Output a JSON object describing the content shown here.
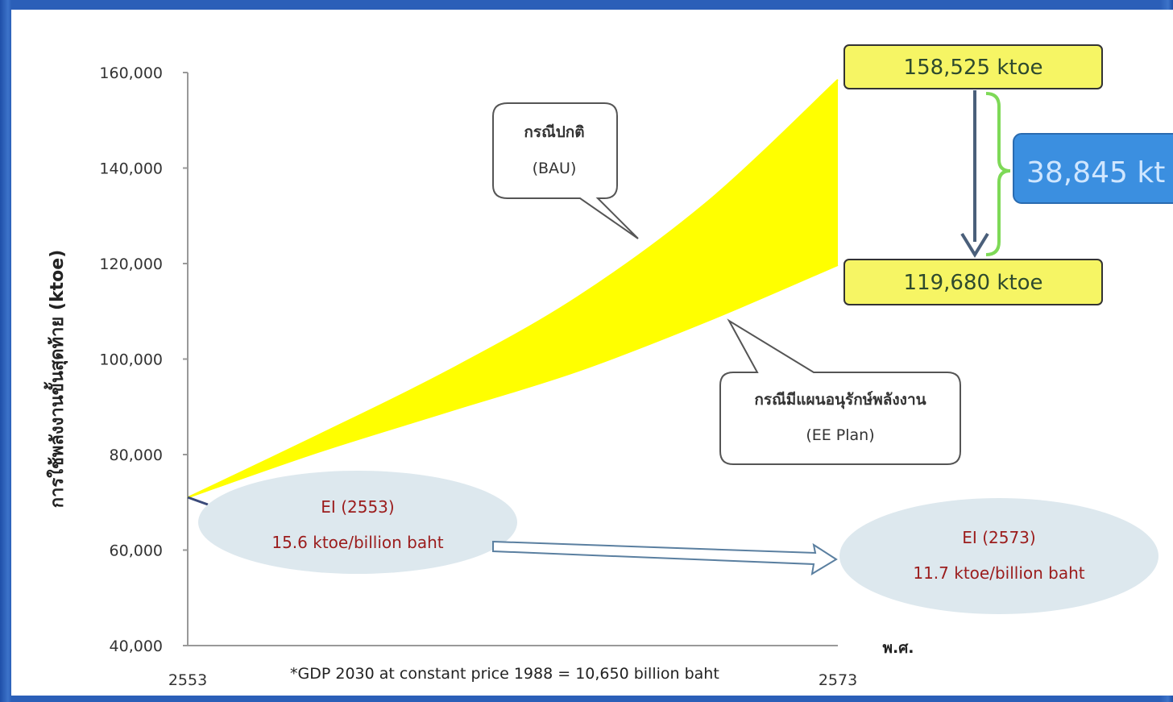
{
  "chart_data": {
    "type": "area",
    "ylabel": "การใช้พลังงานขั้นสุดท้าย (ktoe)",
    "xlabel_unit": "พ.ศ.",
    "x_ticks": [
      "2553",
      "2573"
    ],
    "y_ticks": [
      "160,000",
      "140,000",
      "120,000",
      "100,000",
      "80,000",
      "60,000",
      "40,000"
    ],
    "y_tick_values": [
      160000,
      140000,
      120000,
      100000,
      80000,
      60000,
      40000
    ],
    "ylim": [
      40000,
      160000
    ],
    "xlim": [
      2553,
      2573
    ],
    "x": [
      2553,
      2557,
      2561,
      2565,
      2569,
      2573
    ],
    "series": [
      {
        "name": "กรณีปกติ (BAU)",
        "values": [
          71000,
          84000,
          97500,
          113000,
          133000,
          158525
        ]
      },
      {
        "name": "กรณีมีแผนอนุรักษ์พลังงาน (EE Plan)",
        "values": [
          71000,
          80500,
          89000,
          97500,
          108000,
          119680
        ]
      }
    ],
    "fill_color": "#ffff00",
    "annotations": {
      "bau_callout": {
        "line1": "กรณีปกติ",
        "line2": "(BAU)"
      },
      "ee_callout": {
        "line1": "กรณีมีแผนอนุรักษ์พลังงาน",
        "line2": "(EE Plan)"
      },
      "bau_end_value": "158,525 ktoe",
      "ee_end_value": "119,680 ktoe",
      "savings": "38,845 kt",
      "ei_start": {
        "line1": "EI (2553)",
        "line2": "15.6 ktoe/billion baht"
      },
      "ei_end": {
        "line1": "EI (2573)",
        "line2": "11.7 ktoe/billion baht"
      },
      "footnote": "*GDP 2030 at constant price 1988 = 10,650 billion baht"
    }
  }
}
